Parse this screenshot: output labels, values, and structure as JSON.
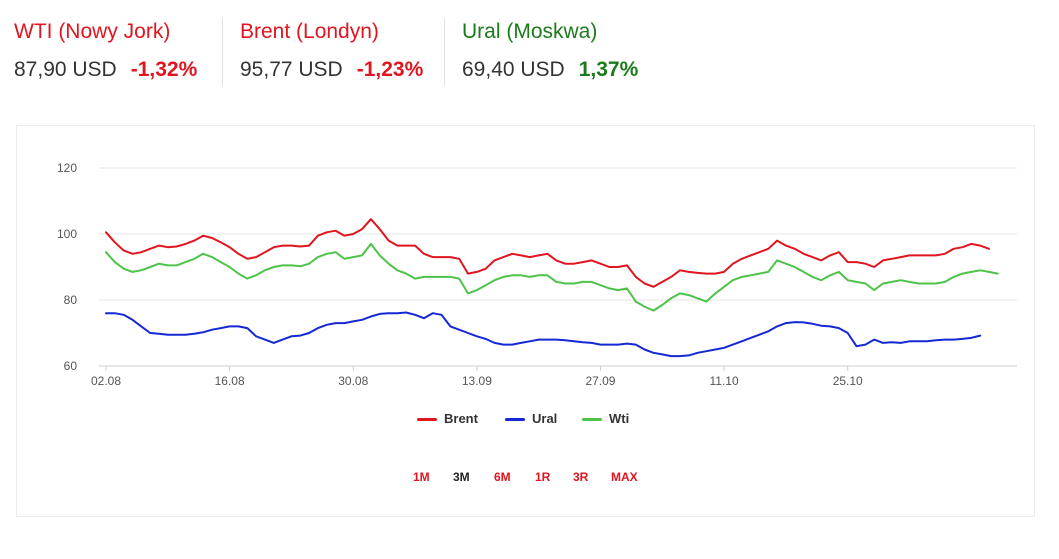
{
  "tickers": [
    {
      "name": "WTI (Nowy Jork)",
      "price": "87,90 USD",
      "change": "-1,32%",
      "name_color": "#e0151f",
      "change_color": "#e0151f"
    },
    {
      "name": "Brent (Londyn)",
      "price": "95,77 USD",
      "change": "-1,23%",
      "name_color": "#e0151f",
      "change_color": "#e0151f"
    },
    {
      "name": "Ural (Moskwa)",
      "price": "69,40 USD",
      "change": "1,37%",
      "name_color": "#1b7a1b",
      "change_color": "#1b7a1b"
    }
  ],
  "ranges": {
    "buttons": [
      "1M",
      "3M",
      "6M",
      "1R",
      "3R",
      "MAX"
    ],
    "active": "3M",
    "active_color": "#222222",
    "inactive_color": "#e0151f"
  },
  "chart_data": {
    "type": "line",
    "x_start": "02.08",
    "x_end": "29.10",
    "x_ticks": [
      {
        "label": "02.08",
        "index": 0
      },
      {
        "label": "16.08",
        "index": 14
      },
      {
        "label": "30.08",
        "index": 28
      },
      {
        "label": "13.09",
        "index": 42
      },
      {
        "label": "27.09",
        "index": 56
      },
      {
        "label": "11.10",
        "index": 70
      },
      {
        "label": "25.10",
        "index": 84
      }
    ],
    "ylim": [
      60,
      120
    ],
    "y_ticks": [
      60,
      80,
      100,
      120
    ],
    "grid": "horizontal",
    "legend_position": "bottom-center",
    "series": [
      {
        "name": "Brent",
        "color": "#e0151f",
        "values": [
          100.5,
          97.5,
          95,
          94,
          94.5,
          95.5,
          96.5,
          96,
          96.2,
          97,
          98,
          99.5,
          98.8,
          97.5,
          96,
          94,
          92.5,
          93,
          94.5,
          96,
          96.5,
          96.5,
          96.2,
          96.5,
          99.5,
          100.5,
          101,
          99.5,
          100,
          101.5,
          104.5,
          101.5,
          98,
          96.5,
          96.5,
          96.5,
          94,
          93,
          93,
          93,
          92.5,
          88,
          88.5,
          89.5,
          92,
          93,
          94,
          93.5,
          93,
          93.5,
          94,
          92,
          91,
          91,
          91.5,
          92,
          91,
          90,
          90,
          90.5,
          87,
          85,
          84,
          85.5,
          87,
          89,
          88.5,
          88.2,
          88,
          88,
          88.5,
          91,
          92.5,
          93.5,
          94.5,
          95.5,
          98,
          96.5,
          95.5,
          94,
          93,
          92,
          93.5,
          94.5,
          91.5,
          91.5,
          91,
          90,
          92,
          92.5,
          93,
          93.5,
          93.5,
          93.5,
          93.5,
          94,
          95.5,
          96,
          97,
          96.5,
          95.5
        ]
      },
      {
        "name": "Ural",
        "color": "#1428d4",
        "values": [
          76,
          76,
          75.5,
          74,
          72,
          70,
          69.8,
          69.5,
          69.5,
          69.5,
          69.8,
          70.2,
          71,
          71.5,
          72,
          72,
          71.5,
          69,
          68,
          67,
          68,
          69,
          69.2,
          70,
          71.5,
          72.5,
          73,
          73,
          73.5,
          74,
          75,
          75.8,
          76,
          76,
          76.2,
          75.5,
          74.5,
          76,
          75.5,
          72,
          71,
          70,
          69,
          68.2,
          67,
          66.5,
          66.5,
          67,
          67.5,
          68,
          68,
          68,
          67.8,
          67.5,
          67.2,
          67,
          66.5,
          66.5,
          66.5,
          66.8,
          66.5,
          65,
          64,
          63.5,
          63,
          63,
          63.2,
          64,
          64.5,
          65,
          65.5,
          66.5,
          67.5,
          68.5,
          69.5,
          70.5,
          72,
          73,
          73.3,
          73.2,
          72.8,
          72.2,
          72,
          71.5,
          70,
          66,
          66.5,
          68,
          67,
          67.2,
          67,
          67.5,
          67.5,
          67.5,
          67.8,
          68,
          68,
          68.2,
          68.5,
          69.2
        ]
      },
      {
        "name": "Wti",
        "color": "#4fc24b",
        "values": [
          94.5,
          91.5,
          89.5,
          88.5,
          89,
          90,
          91,
          90.5,
          90.5,
          91.5,
          92.5,
          94,
          93,
          91.5,
          90,
          88,
          86.5,
          87.5,
          89,
          90,
          90.5,
          90.5,
          90.2,
          91,
          93,
          94,
          94.5,
          92.5,
          93,
          93.5,
          97,
          93.5,
          91,
          89,
          88,
          86.5,
          87,
          87,
          87,
          87,
          86.5,
          82,
          83,
          84.5,
          86,
          87,
          87.5,
          87.5,
          87,
          87.5,
          87.5,
          85.5,
          85,
          85,
          85.5,
          85.5,
          84.5,
          83.5,
          83,
          83.5,
          79.5,
          78,
          76.8,
          78.5,
          80.5,
          82,
          81.5,
          80.5,
          79.5,
          82,
          84,
          86,
          87,
          87.5,
          88,
          88.5,
          92,
          91,
          90,
          88.5,
          87,
          86,
          87.5,
          88.5,
          86,
          85.5,
          85,
          83,
          85,
          85.5,
          86,
          85.5,
          85,
          85,
          85,
          85.5,
          87,
          88,
          88.5,
          89,
          88.5,
          88
        ]
      }
    ]
  }
}
